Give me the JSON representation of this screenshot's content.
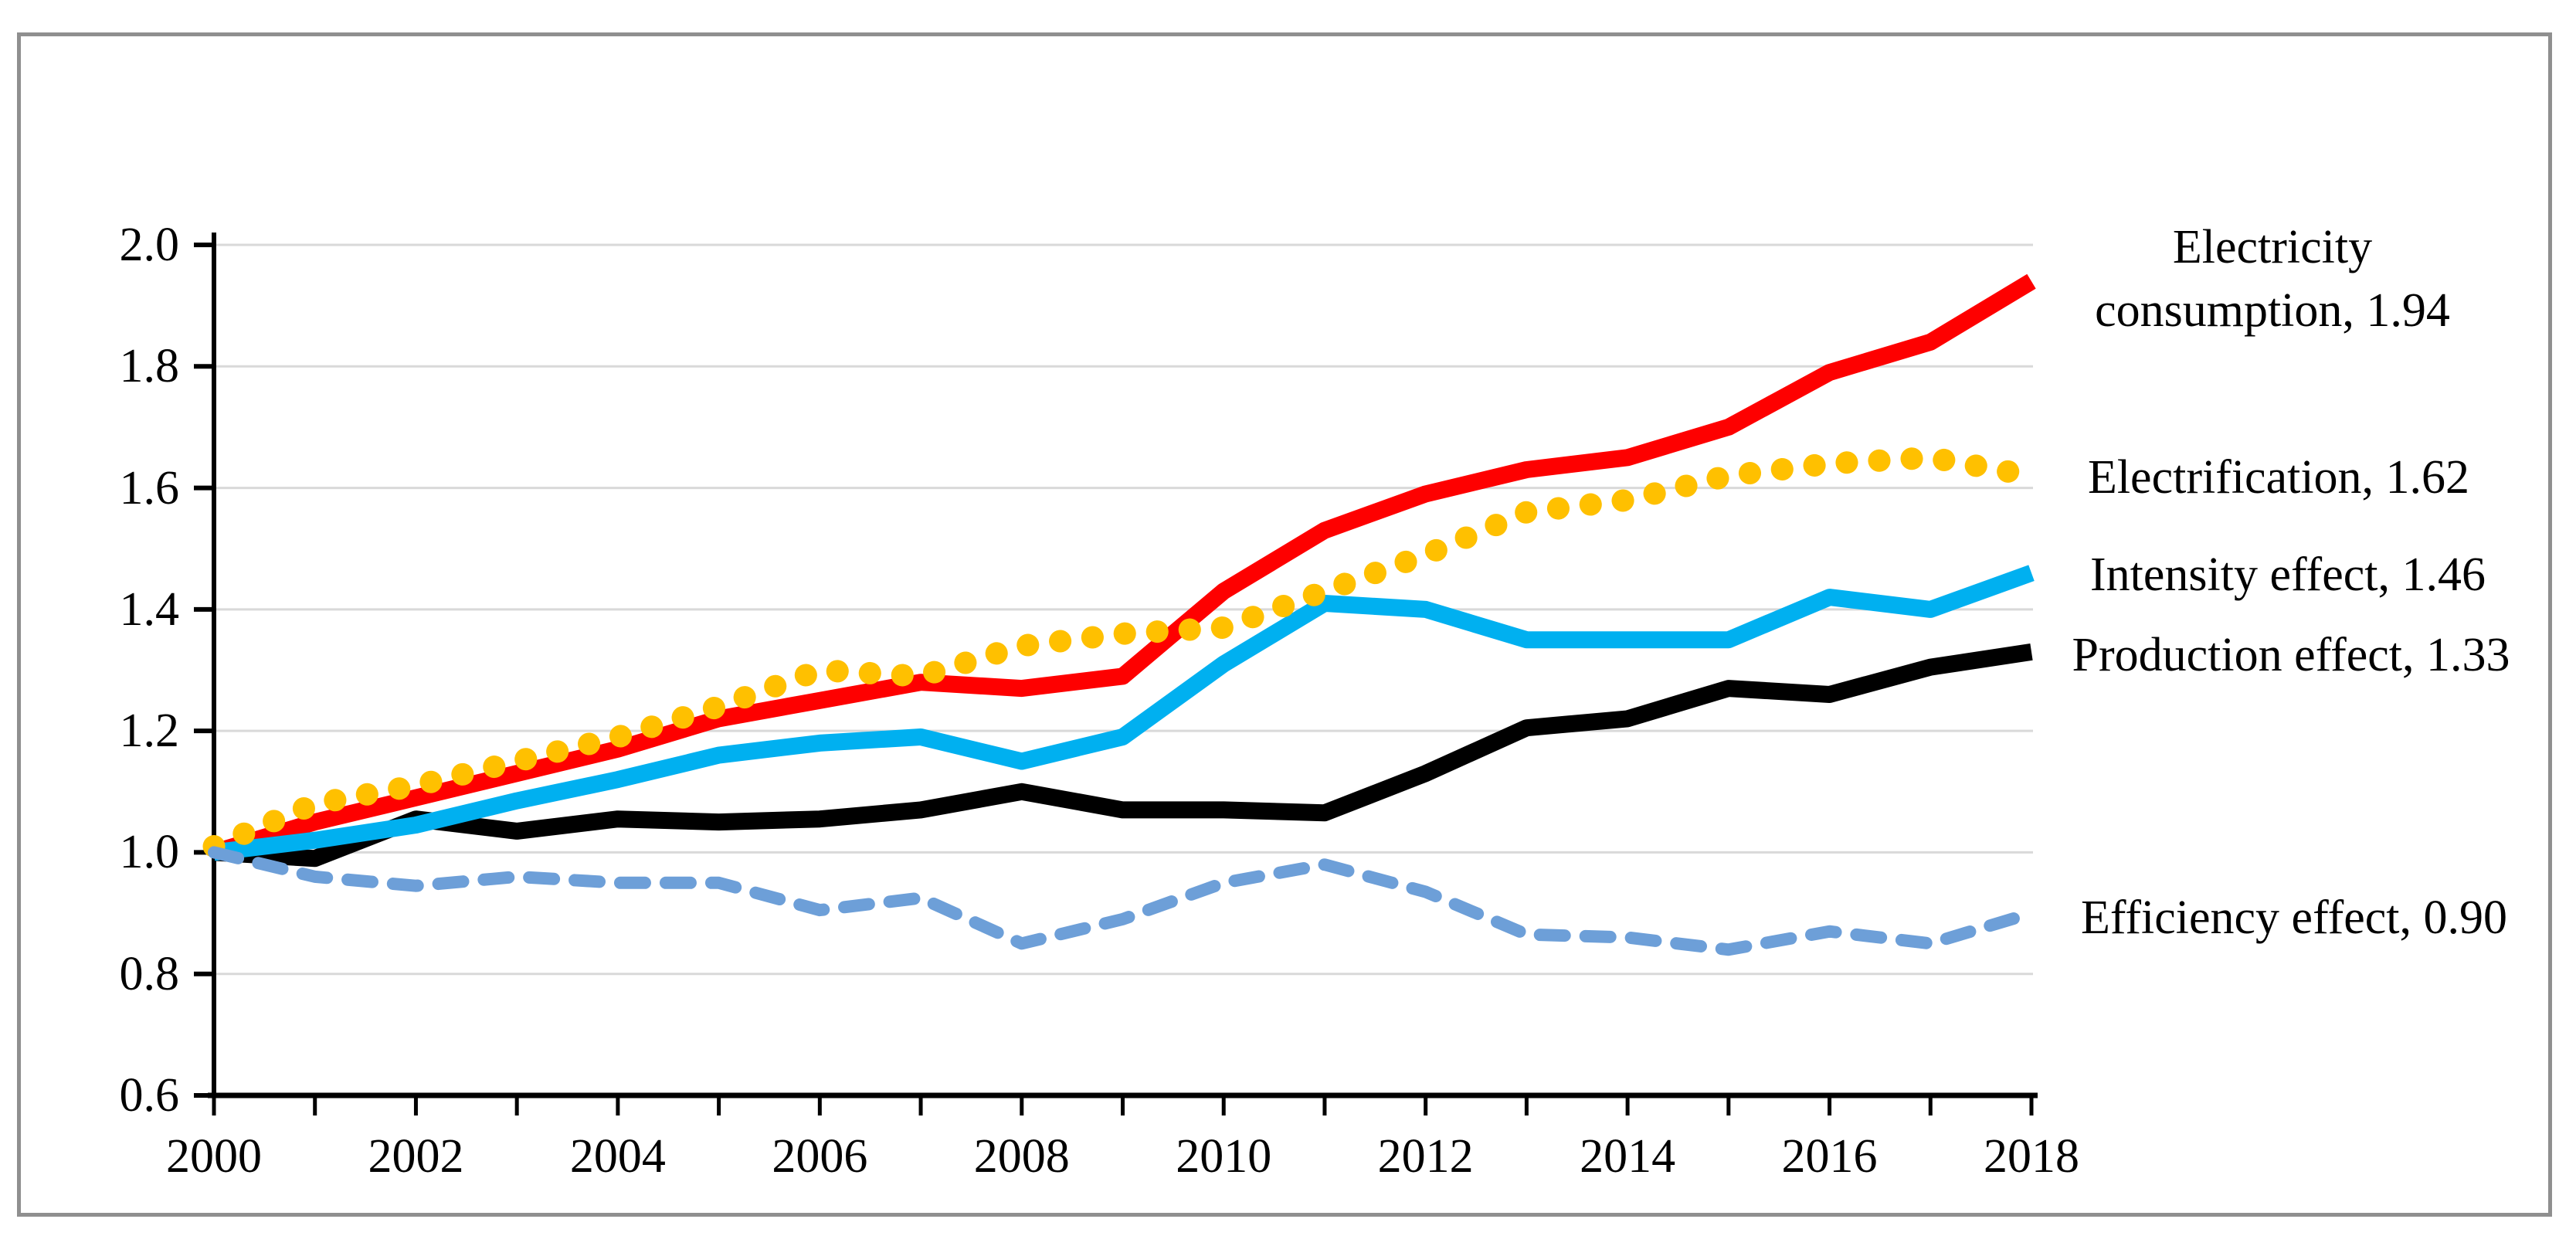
{
  "figure": {
    "background_color": "#ffffff",
    "border_color": "#8f8f8f",
    "gridline_color": "#d9d9d9",
    "axis_color": "#000000",
    "text_color": "#000000"
  },
  "chart_data": {
    "type": "line",
    "title": "",
    "xlabel": "",
    "ylabel": "",
    "grid": true,
    "legend_position": "right-annotations",
    "ylim": [
      0.6,
      2.0
    ],
    "ytick_step": 0.2,
    "x": [
      2000,
      2001,
      2002,
      2003,
      2004,
      2005,
      2006,
      2007,
      2008,
      2009,
      2010,
      2011,
      2012,
      2013,
      2014,
      2015,
      2016,
      2017,
      2018
    ],
    "series": [
      {
        "name": "Electricity consumption",
        "color": "#fe0000",
        "style": "solid",
        "end_value": 1.94,
        "values": [
          1.0,
          1.05,
          1.09,
          1.13,
          1.17,
          1.22,
          1.25,
          1.28,
          1.27,
          1.29,
          1.43,
          1.53,
          1.59,
          1.63,
          1.65,
          1.7,
          1.79,
          1.84,
          1.94
        ]
      },
      {
        "name": "Electrification",
        "color": "#ffc000",
        "style": "dotted",
        "end_value": 1.62,
        "values": [
          1.01,
          1.08,
          1.11,
          1.15,
          1.19,
          1.24,
          1.3,
          1.29,
          1.34,
          1.36,
          1.37,
          1.43,
          1.49,
          1.56,
          1.58,
          1.62,
          1.64,
          1.65,
          1.62
        ]
      },
      {
        "name": "Intensity effect",
        "color": "#00b0f0",
        "style": "solid",
        "end_value": 1.46,
        "values": [
          1.0,
          1.02,
          1.045,
          1.085,
          1.12,
          1.16,
          1.18,
          1.19,
          1.15,
          1.19,
          1.31,
          1.41,
          1.4,
          1.35,
          1.35,
          1.35,
          1.42,
          1.4,
          1.46
        ]
      },
      {
        "name": "Production effect",
        "color": "#000000",
        "style": "solid",
        "end_value": 1.33,
        "values": [
          1.0,
          0.99,
          1.055,
          1.035,
          1.055,
          1.05,
          1.055,
          1.07,
          1.1,
          1.07,
          1.07,
          1.065,
          1.13,
          1.205,
          1.22,
          1.27,
          1.26,
          1.305,
          1.33
        ]
      },
      {
        "name": "Efficiency effect",
        "color": "#6d9fd8",
        "style": "dashed",
        "end_value": 0.9,
        "values": [
          1.0,
          0.96,
          0.945,
          0.96,
          0.95,
          0.95,
          0.905,
          0.925,
          0.85,
          0.89,
          0.95,
          0.98,
          0.935,
          0.865,
          0.86,
          0.84,
          0.87,
          0.85,
          0.9
        ]
      }
    ]
  },
  "axes": {
    "y_tick_values": [
      2.0,
      1.8,
      1.6,
      1.4,
      1.2,
      1.0,
      0.8,
      0.6
    ],
    "y_tick_labels": [
      "2.0",
      "1.8",
      "1.6",
      "1.4",
      "1.2",
      "1.0",
      "0.8",
      "0.6"
    ],
    "x_tick_label_years": [
      2000,
      2002,
      2004,
      2006,
      2008,
      2010,
      2012,
      2014,
      2016,
      2018
    ],
    "x_tick_labels": [
      "2000",
      "2002",
      "2004",
      "2006",
      "2008",
      "2010",
      "2012",
      "2014",
      "2016",
      "2018"
    ]
  },
  "annotations": {
    "electricity_consumption_line1": "Electricity",
    "electricity_consumption_line2": "consumption, 1.94",
    "electrification": "Electrification, 1.62",
    "intensity": "Intensity effect, 1.46",
    "production": "Production effect, 1.33",
    "efficiency": "Efficiency effect, 0.90"
  }
}
